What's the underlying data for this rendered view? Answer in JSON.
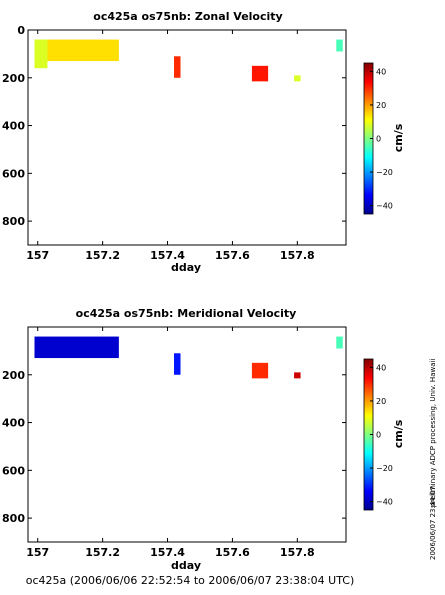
{
  "footer": "oc425a (2006/06/06 22:52:54 to 2006/06/07 23:38:04 UTC)",
  "side_label": "preliminary ADCP processing,  Univ. Hawaii",
  "side_date": "2006/06/07 23:44:07",
  "chart_data": [
    {
      "type": "heatmap",
      "title": "oc425a os75nb: Zonal Velocity",
      "xlabel": "dday",
      "ylabel": "",
      "xlim": [
        156.97,
        157.95
      ],
      "ylim": [
        900,
        0
      ],
      "x_ticks": [
        157,
        157.2,
        157.4,
        157.6,
        157.8
      ],
      "x_tick_labels": [
        "157",
        "157.2",
        "157.4",
        "157.6",
        "157.8"
      ],
      "y_ticks": [
        0,
        200,
        400,
        600,
        800
      ],
      "y_tick_labels": [
        "0",
        "200",
        "400",
        "600",
        "800"
      ],
      "colorbar": {
        "label": "cm/s",
        "range": [
          -45,
          45
        ],
        "ticks": [
          40,
          20,
          0,
          -20,
          -40
        ],
        "tick_labels": [
          "40",
          "20",
          "0",
          "−20",
          "−40"
        ]
      },
      "patches": [
        {
          "x0": 156.99,
          "x1": 157.25,
          "d0": 40,
          "d1": 130,
          "value": 14
        },
        {
          "x0": 156.99,
          "x1": 157.03,
          "d0": 40,
          "d1": 160,
          "value": 8
        },
        {
          "x0": 157.42,
          "x1": 157.44,
          "d0": 110,
          "d1": 200,
          "value": 30
        },
        {
          "x0": 157.66,
          "x1": 157.71,
          "d0": 150,
          "d1": 215,
          "value": 32
        },
        {
          "x0": 157.79,
          "x1": 157.81,
          "d0": 190,
          "d1": 215,
          "value": 8
        },
        {
          "x0": 157.92,
          "x1": 157.94,
          "d0": 40,
          "d1": 90,
          "value": -5
        }
      ]
    },
    {
      "type": "heatmap",
      "title": "oc425a os75nb: Meridional Velocity",
      "xlabel": "dday",
      "ylabel": "",
      "xlim": [
        156.97,
        157.95
      ],
      "ylim": [
        900,
        0
      ],
      "x_ticks": [
        157,
        157.2,
        157.4,
        157.6,
        157.8
      ],
      "x_tick_labels": [
        "157",
        "157.2",
        "157.4",
        "157.6",
        "157.8"
      ],
      "y_ticks": [
        200,
        400,
        600,
        800
      ],
      "y_tick_labels": [
        "200",
        "400",
        "600",
        "800"
      ],
      "colorbar": {
        "label": "cm/s",
        "range": [
          -45,
          45
        ],
        "ticks": [
          40,
          20,
          0,
          -20,
          -40
        ],
        "tick_labels": [
          "40",
          "20",
          "0",
          "−20",
          "−40"
        ]
      },
      "patches": [
        {
          "x0": 156.99,
          "x1": 157.25,
          "d0": 40,
          "d1": 130,
          "value": -38
        },
        {
          "x0": 157.42,
          "x1": 157.44,
          "d0": 110,
          "d1": 200,
          "value": -32
        },
        {
          "x0": 157.66,
          "x1": 157.71,
          "d0": 150,
          "d1": 215,
          "value": 30
        },
        {
          "x0": 157.79,
          "x1": 157.81,
          "d0": 190,
          "d1": 215,
          "value": 38
        },
        {
          "x0": 157.92,
          "x1": 157.94,
          "d0": 40,
          "d1": 90,
          "value": -5
        }
      ]
    }
  ]
}
